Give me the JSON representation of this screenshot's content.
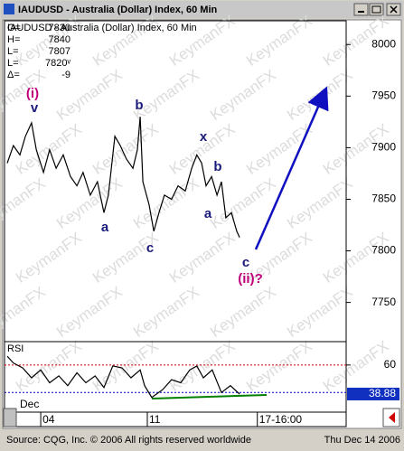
{
  "chart_data": [
    {
      "type": "line",
      "title": "IAUDUSD - Australia (Dollar) Index, 60 Min",
      "color": "#000000",
      "readout": [
        [
          "O=",
          "7830"
        ],
        [
          "H=",
          "7840"
        ],
        [
          "L=",
          "7807"
        ],
        [
          "L=",
          "7820ᵛ"
        ],
        [
          "Δ=",
          "-9"
        ]
      ],
      "x": [
        0.8,
        2.6,
        4.5,
        6.1,
        7.9,
        9.3,
        11.4,
        13.2,
        15.1,
        17.2,
        19.3,
        21.2,
        23,
        25.1,
        27.2,
        29.1,
        30.4,
        32.3,
        33.9,
        35.7,
        37.6,
        38.9,
        39.7,
        40.5,
        42.3,
        43.7,
        45.2,
        46.8,
        48.9,
        50.8,
        52.9,
        54.8,
        56.3,
        57.7,
        59,
        60.6,
        62.2,
        63.5,
        64.8,
        66.4,
        68,
        68.8
      ],
      "values": [
        7885,
        7902,
        7893,
        7911,
        7924,
        7898,
        7876,
        7898,
        7880,
        7893,
        7872,
        7863,
        7876,
        7854,
        7867,
        7837,
        7854,
        7911,
        7902,
        7889,
        7880,
        7898,
        7930,
        7867,
        7845,
        7819,
        7837,
        7854,
        7850,
        7863,
        7858,
        7880,
        7893,
        7885,
        7863,
        7872,
        7854,
        7867,
        7832,
        7837,
        7819,
        7813
      ],
      "xlim": [
        0,
        100
      ],
      "xticks": [
        {
          "value": 10.6,
          "label": "04"
        },
        {
          "value": 41.8,
          "label": "11"
        },
        {
          "value": 74,
          "label": "17-16:00"
        }
      ],
      "x_month_label": "Dec",
      "ylim": [
        7712,
        8023
      ],
      "yticks": [
        7750,
        7800,
        7850,
        7900,
        7950,
        8000
      ],
      "annotations": [
        {
          "text": "(i)",
          "color": "#c0007a"
        },
        {
          "text": "v",
          "color": "#1a1a7a"
        },
        {
          "text": "b",
          "color": "#1a1a7a"
        },
        {
          "text": "a",
          "color": "#1a1a7a"
        },
        {
          "text": "c",
          "color": "#1a1a7a"
        },
        {
          "text": "x",
          "color": "#1a1a7a"
        },
        {
          "text": "b",
          "color": "#1a1a7a"
        },
        {
          "text": "a",
          "color": "#1a1a7a"
        },
        {
          "text": "c",
          "color": "#1a1a7a"
        },
        {
          "text": "(ii)?",
          "color": "#c0007a"
        }
      ],
      "watermark": "KeymanFX"
    },
    {
      "type": "line",
      "title": "RSI",
      "color": "#000000",
      "x": [
        0.8,
        2.6,
        5.3,
        7.9,
        10.6,
        13.2,
        15.9,
        18.5,
        21.2,
        23.8,
        26.5,
        29.1,
        31.7,
        34.4,
        37,
        39.7,
        41,
        43.1,
        46.3,
        48.9,
        51.6,
        54.2,
        56.3,
        58.2,
        60.8,
        63.5,
        66.1,
        68.8
      ],
      "values": [
        66.4,
        61.4,
        57.9,
        50.7,
        56.4,
        47.1,
        52.1,
        45,
        54.3,
        47.1,
        52.1,
        43.6,
        59.3,
        57.9,
        50.7,
        56.4,
        45,
        36.4,
        42.1,
        49.3,
        47.1,
        56.4,
        59.3,
        50.7,
        56.4,
        40,
        45,
        38.88
      ],
      "xlim": [
        0,
        100
      ],
      "ylim": [
        25.7,
        77
      ],
      "yticks": [
        60
      ],
      "levels": [
        {
          "value": 60,
          "color": "#d00000"
        },
        {
          "value": 40,
          "color": "#0000c0"
        }
      ]
    }
  ],
  "footer": {
    "source": "Source: CQG, Inc. © 2006 All rights reserved worldwide",
    "date": "Thu Dec 14 2006"
  }
}
